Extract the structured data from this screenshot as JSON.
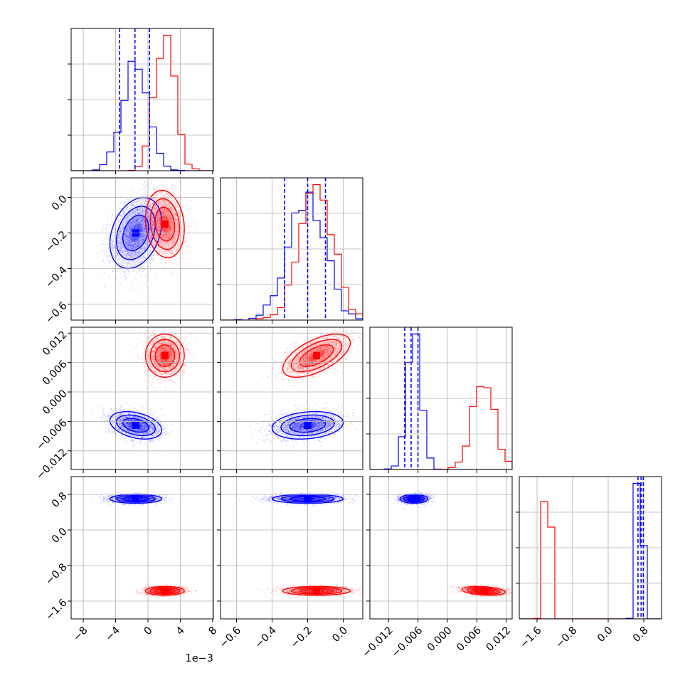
{
  "chart_data": {
    "type": "corner",
    "title": "",
    "parameters": [
      {
        "tick_values": [
          -0.008,
          -0.004,
          0,
          0.004,
          0.008
        ],
        "tick_labels": [
          "−8",
          "−4",
          "0",
          "4",
          "8"
        ],
        "offset_text": "1e−3",
        "range": [
          -0.0095,
          0.0081
        ]
      },
      {
        "tick_values": [
          -0.6,
          -0.4,
          -0.2,
          0.0
        ],
        "tick_labels": [
          "−0.6",
          "−0.4",
          "−0.2",
          "0.0"
        ],
        "offset_text": "",
        "range": [
          -0.69,
          0.11
        ]
      },
      {
        "tick_values": [
          -0.012,
          -0.006,
          0.0,
          0.006,
          0.012
        ],
        "tick_labels": [
          "−0.012",
          "−0.006",
          "0.000",
          "0.006",
          "0.012"
        ],
        "offset_text": "",
        "range": [
          -0.0158,
          0.0132
        ]
      },
      {
        "tick_values": [
          -1.6,
          -0.8,
          0.0,
          0.8
        ],
        "tick_labels": [
          "−1.6",
          "−0.8",
          "0.0",
          "0.8"
        ],
        "offset_text": "",
        "range": [
          -2.0,
          1.2
        ]
      }
    ],
    "series": [
      {
        "color": "#0000ff",
        "means": [
          -0.0015,
          -0.2,
          -0.0068,
          0.7
        ],
        "sds": [
          0.0016,
          0.1,
          0.0014,
          0.05
        ],
        "corr": {
          "0_1": 0.3,
          "0_2": -0.35,
          "0_3": 0.0,
          "1_2": 0.2,
          "1_3": 0.0,
          "2_3": 0.0
        },
        "quantiles": [
          [
            -0.0035,
            -0.0016,
            0.0002
          ],
          [
            -0.33,
            -0.2,
            -0.1
          ],
          [
            -0.0087,
            -0.0074,
            -0.006
          ],
          [
            0.67,
            0.74,
            0.79
          ]
        ]
      },
      {
        "color": "#ff0000",
        "means": [
          0.0021,
          -0.15,
          0.0074,
          -1.37
        ],
        "sds": [
          0.0012,
          0.095,
          0.0022,
          0.05
        ],
        "corr": {
          "0_1": -0.15,
          "0_2": 0.0,
          "0_3": 0.0,
          "1_2": 0.6,
          "1_3": 0.0,
          "2_3": -0.3
        },
        "quantiles": []
      }
    ],
    "grid": true
  }
}
